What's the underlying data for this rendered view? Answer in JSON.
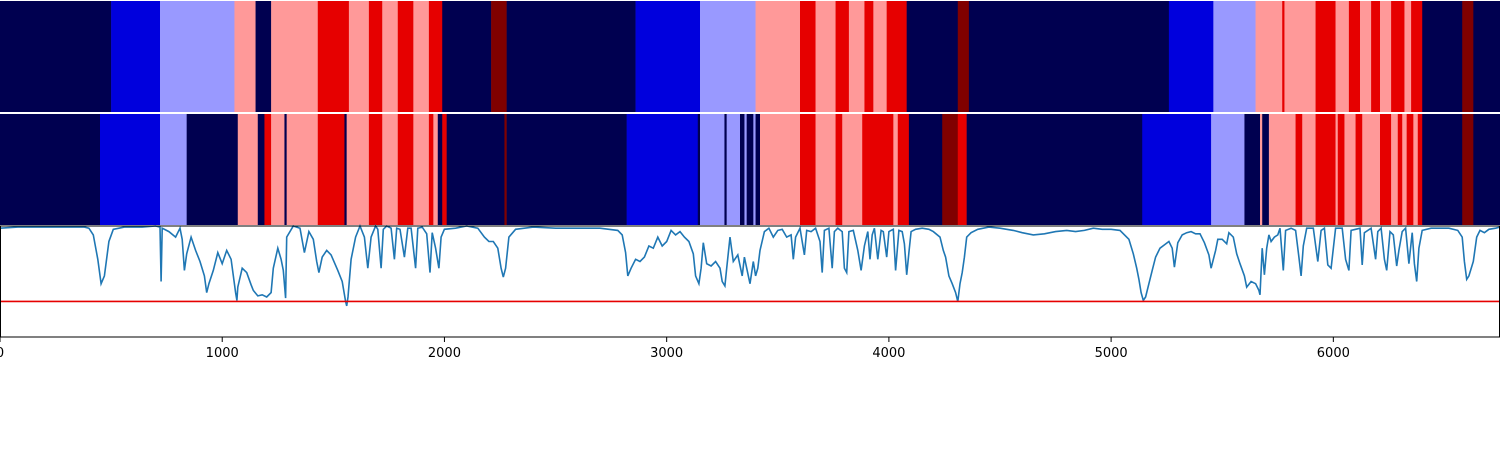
{
  "chart_data": {
    "type": "segmentation-strips-with-line",
    "xlim": [
      0,
      6750
    ],
    "x_ticks": [
      0,
      1000,
      2000,
      3000,
      4000,
      5000,
      6000
    ],
    "tick_labels": [
      "0",
      "1000",
      "2000",
      "3000",
      "4000",
      "5000",
      "6000"
    ],
    "ylim": [
      0,
      1
    ],
    "threshold": 0.32,
    "colors": {
      "0": "#000050",
      "1": "#0000dd",
      "2": "#9999ff",
      "3": "#ff9999",
      "4": "#e60000",
      "5": "#800000"
    },
    "line_color": "#1f77b4",
    "threshold_color": "#e60000",
    "strip1": [
      [
        0,
        0
      ],
      [
        500,
        1
      ],
      [
        720,
        2
      ],
      [
        1055,
        3
      ],
      [
        1150,
        0
      ],
      [
        1220,
        3
      ],
      [
        1430,
        4
      ],
      [
        1570,
        3
      ],
      [
        1660,
        4
      ],
      [
        1720,
        3
      ],
      [
        1790,
        4
      ],
      [
        1860,
        3
      ],
      [
        1930,
        4
      ],
      [
        1990,
        0
      ],
      [
        2210,
        5
      ],
      [
        2280,
        0
      ],
      [
        2860,
        1
      ],
      [
        3150,
        2
      ],
      [
        3400,
        3
      ],
      [
        3600,
        4
      ],
      [
        3670,
        3
      ],
      [
        3760,
        4
      ],
      [
        3820,
        3
      ],
      [
        3890,
        4
      ],
      [
        3930,
        3
      ],
      [
        3990,
        4
      ],
      [
        4080,
        0
      ],
      [
        4310,
        5
      ],
      [
        4360,
        0
      ],
      [
        5260,
        1
      ],
      [
        5460,
        2
      ],
      [
        5650,
        3
      ],
      [
        5770,
        4
      ],
      [
        5780,
        3
      ],
      [
        5920,
        4
      ],
      [
        6010,
        3
      ],
      [
        6070,
        4
      ],
      [
        6120,
        3
      ],
      [
        6170,
        4
      ],
      [
        6210,
        3
      ],
      [
        6260,
        4
      ],
      [
        6320,
        3
      ],
      [
        6350,
        4
      ],
      [
        6400,
        0
      ],
      [
        6580,
        5
      ],
      [
        6630,
        0
      ]
    ],
    "strip2": [
      [
        0,
        0
      ],
      [
        450,
        1
      ],
      [
        720,
        2
      ],
      [
        840,
        0
      ],
      [
        1070,
        3
      ],
      [
        1160,
        0
      ],
      [
        1190,
        4
      ],
      [
        1220,
        3
      ],
      [
        1280,
        0
      ],
      [
        1290,
        3
      ],
      [
        1430,
        4
      ],
      [
        1550,
        0
      ],
      [
        1560,
        3
      ],
      [
        1660,
        4
      ],
      [
        1720,
        3
      ],
      [
        1790,
        4
      ],
      [
        1860,
        3
      ],
      [
        1930,
        4
      ],
      [
        1950,
        3
      ],
      [
        1970,
        0
      ],
      [
        1990,
        4
      ],
      [
        2010,
        0
      ],
      [
        2270,
        5
      ],
      [
        2280,
        0
      ],
      [
        2820,
        1
      ],
      [
        3140,
        0
      ],
      [
        3150,
        2
      ],
      [
        3260,
        0
      ],
      [
        3270,
        2
      ],
      [
        3330,
        0
      ],
      [
        3350,
        2
      ],
      [
        3360,
        0
      ],
      [
        3390,
        2
      ],
      [
        3400,
        0
      ],
      [
        3420,
        3
      ],
      [
        3600,
        4
      ],
      [
        3670,
        3
      ],
      [
        3760,
        4
      ],
      [
        3790,
        3
      ],
      [
        3880,
        4
      ],
      [
        4020,
        3
      ],
      [
        4040,
        4
      ],
      [
        4090,
        0
      ],
      [
        4240,
        5
      ],
      [
        4310,
        4
      ],
      [
        4350,
        0
      ],
      [
        5140,
        1
      ],
      [
        5450,
        2
      ],
      [
        5600,
        0
      ],
      [
        5670,
        3
      ],
      [
        5680,
        0
      ],
      [
        5710,
        3
      ],
      [
        5830,
        4
      ],
      [
        5860,
        3
      ],
      [
        5920,
        4
      ],
      [
        6010,
        3
      ],
      [
        6020,
        4
      ],
      [
        6050,
        3
      ],
      [
        6100,
        4
      ],
      [
        6130,
        3
      ],
      [
        6210,
        4
      ],
      [
        6260,
        3
      ],
      [
        6290,
        4
      ],
      [
        6310,
        3
      ],
      [
        6330,
        4
      ],
      [
        6360,
        3
      ],
      [
        6380,
        4
      ],
      [
        6400,
        0
      ],
      [
        6580,
        5
      ],
      [
        6630,
        0
      ]
    ],
    "line": [
      [
        0,
        0.98
      ],
      [
        80,
        0.99
      ],
      [
        200,
        0.99
      ],
      [
        300,
        0.99
      ],
      [
        380,
        0.99
      ],
      [
        400,
        0.98
      ],
      [
        420,
        0.92
      ],
      [
        440,
        0.7
      ],
      [
        455,
        0.48
      ],
      [
        470,
        0.55
      ],
      [
        490,
        0.86
      ],
      [
        510,
        0.97
      ],
      [
        560,
        0.99
      ],
      [
        640,
        0.99
      ],
      [
        700,
        1.0
      ],
      [
        720,
        0.99
      ],
      [
        725,
        0.5
      ],
      [
        730,
        0.98
      ],
      [
        760,
        0.95
      ],
      [
        790,
        0.9
      ],
      [
        810,
        0.98
      ],
      [
        820,
        0.88
      ],
      [
        830,
        0.6
      ],
      [
        840,
        0.75
      ],
      [
        860,
        0.9
      ],
      [
        880,
        0.78
      ],
      [
        900,
        0.68
      ],
      [
        920,
        0.55
      ],
      [
        930,
        0.4
      ],
      [
        940,
        0.48
      ],
      [
        960,
        0.6
      ],
      [
        980,
        0.76
      ],
      [
        1000,
        0.66
      ],
      [
        1020,
        0.78
      ],
      [
        1040,
        0.7
      ],
      [
        1060,
        0.4
      ],
      [
        1066,
        0.33
      ],
      [
        1070,
        0.45
      ],
      [
        1090,
        0.62
      ],
      [
        1110,
        0.58
      ],
      [
        1130,
        0.47
      ],
      [
        1140,
        0.42
      ],
      [
        1160,
        0.37
      ],
      [
        1180,
        0.38
      ],
      [
        1200,
        0.36
      ],
      [
        1220,
        0.4
      ],
      [
        1230,
        0.62
      ],
      [
        1250,
        0.8
      ],
      [
        1265,
        0.7
      ],
      [
        1275,
        0.6
      ],
      [
        1285,
        0.35
      ],
      [
        1290,
        0.9
      ],
      [
        1320,
        1.0
      ],
      [
        1350,
        0.98
      ],
      [
        1370,
        0.76
      ],
      [
        1390,
        0.95
      ],
      [
        1410,
        0.88
      ],
      [
        1425,
        0.68
      ],
      [
        1435,
        0.58
      ],
      [
        1450,
        0.72
      ],
      [
        1470,
        0.78
      ],
      [
        1490,
        0.74
      ],
      [
        1520,
        0.6
      ],
      [
        1540,
        0.5
      ],
      [
        1555,
        0.32
      ],
      [
        1560,
        0.28
      ],
      [
        1566,
        0.36
      ],
      [
        1580,
        0.7
      ],
      [
        1600,
        0.9
      ],
      [
        1620,
        1.0
      ],
      [
        1640,
        0.9
      ],
      [
        1655,
        0.62
      ],
      [
        1670,
        0.9
      ],
      [
        1690,
        1.0
      ],
      [
        1700,
        0.97
      ],
      [
        1715,
        0.62
      ],
      [
        1725,
        0.97
      ],
      [
        1740,
        1.0
      ],
      [
        1760,
        0.98
      ],
      [
        1775,
        0.7
      ],
      [
        1785,
        0.98
      ],
      [
        1800,
        0.97
      ],
      [
        1820,
        0.72
      ],
      [
        1835,
        0.98
      ],
      [
        1850,
        0.98
      ],
      [
        1870,
        0.62
      ],
      [
        1880,
        0.98
      ],
      [
        1900,
        0.99
      ],
      [
        1920,
        0.93
      ],
      [
        1935,
        0.58
      ],
      [
        1945,
        0.94
      ],
      [
        1960,
        0.8
      ],
      [
        1975,
        0.62
      ],
      [
        1985,
        0.9
      ],
      [
        2000,
        0.97
      ],
      [
        2050,
        0.98
      ],
      [
        2100,
        1.0
      ],
      [
        2150,
        0.98
      ],
      [
        2180,
        0.9
      ],
      [
        2200,
        0.86
      ],
      [
        2220,
        0.86
      ],
      [
        2240,
        0.8
      ],
      [
        2255,
        0.62
      ],
      [
        2265,
        0.54
      ],
      [
        2275,
        0.62
      ],
      [
        2290,
        0.9
      ],
      [
        2320,
        0.97
      ],
      [
        2400,
        0.99
      ],
      [
        2500,
        0.98
      ],
      [
        2600,
        0.98
      ],
      [
        2700,
        0.98
      ],
      [
        2780,
        0.96
      ],
      [
        2800,
        0.92
      ],
      [
        2815,
        0.76
      ],
      [
        2825,
        0.55
      ],
      [
        2840,
        0.62
      ],
      [
        2860,
        0.7
      ],
      [
        2880,
        0.68
      ],
      [
        2900,
        0.72
      ],
      [
        2920,
        0.82
      ],
      [
        2940,
        0.8
      ],
      [
        2960,
        0.9
      ],
      [
        2980,
        0.82
      ],
      [
        3000,
        0.86
      ],
      [
        3020,
        0.96
      ],
      [
        3040,
        0.92
      ],
      [
        3060,
        0.95
      ],
      [
        3080,
        0.9
      ],
      [
        3100,
        0.86
      ],
      [
        3120,
        0.75
      ],
      [
        3130,
        0.55
      ],
      [
        3145,
        0.48
      ],
      [
        3155,
        0.62
      ],
      [
        3165,
        0.85
      ],
      [
        3180,
        0.66
      ],
      [
        3200,
        0.64
      ],
      [
        3220,
        0.68
      ],
      [
        3240,
        0.62
      ],
      [
        3250,
        0.5
      ],
      [
        3262,
        0.46
      ],
      [
        3270,
        0.62
      ],
      [
        3285,
        0.9
      ],
      [
        3300,
        0.68
      ],
      [
        3320,
        0.74
      ],
      [
        3340,
        0.55
      ],
      [
        3350,
        0.72
      ],
      [
        3360,
        0.62
      ],
      [
        3375,
        0.48
      ],
      [
        3390,
        0.68
      ],
      [
        3400,
        0.55
      ],
      [
        3410,
        0.62
      ],
      [
        3420,
        0.78
      ],
      [
        3440,
        0.95
      ],
      [
        3460,
        0.98
      ],
      [
        3480,
        0.9
      ],
      [
        3500,
        0.96
      ],
      [
        3520,
        0.97
      ],
      [
        3540,
        0.9
      ],
      [
        3560,
        0.92
      ],
      [
        3570,
        0.7
      ],
      [
        3580,
        0.9
      ],
      [
        3600,
        0.98
      ],
      [
        3620,
        0.74
      ],
      [
        3630,
        0.96
      ],
      [
        3650,
        0.95
      ],
      [
        3670,
        0.98
      ],
      [
        3690,
        0.86
      ],
      [
        3700,
        0.58
      ],
      [
        3710,
        0.96
      ],
      [
        3730,
        0.98
      ],
      [
        3745,
        0.62
      ],
      [
        3755,
        0.95
      ],
      [
        3770,
        0.98
      ],
      [
        3790,
        0.95
      ],
      [
        3800,
        0.62
      ],
      [
        3810,
        0.58
      ],
      [
        3820,
        0.95
      ],
      [
        3840,
        0.96
      ],
      [
        3860,
        0.78
      ],
      [
        3875,
        0.6
      ],
      [
        3890,
        0.82
      ],
      [
        3905,
        0.95
      ],
      [
        3915,
        0.7
      ],
      [
        3925,
        0.92
      ],
      [
        3935,
        0.98
      ],
      [
        3950,
        0.7
      ],
      [
        3965,
        0.96
      ],
      [
        3975,
        0.95
      ],
      [
        3990,
        0.72
      ],
      [
        4000,
        0.95
      ],
      [
        4020,
        0.97
      ],
      [
        4030,
        0.6
      ],
      [
        4045,
        0.96
      ],
      [
        4060,
        0.95
      ],
      [
        4070,
        0.84
      ],
      [
        4080,
        0.56
      ],
      [
        4090,
        0.76
      ],
      [
        4100,
        0.95
      ],
      [
        4120,
        0.97
      ],
      [
        4150,
        0.98
      ],
      [
        4180,
        0.97
      ],
      [
        4200,
        0.95
      ],
      [
        4230,
        0.9
      ],
      [
        4245,
        0.78
      ],
      [
        4255,
        0.72
      ],
      [
        4270,
        0.55
      ],
      [
        4285,
        0.48
      ],
      [
        4300,
        0.4
      ],
      [
        4310,
        0.32
      ],
      [
        4320,
        0.48
      ],
      [
        4330,
        0.58
      ],
      [
        4340,
        0.72
      ],
      [
        4350,
        0.9
      ],
      [
        4370,
        0.94
      ],
      [
        4400,
        0.97
      ],
      [
        4450,
        0.99
      ],
      [
        4500,
        0.98
      ],
      [
        4560,
        0.96
      ],
      [
        4600,
        0.94
      ],
      [
        4650,
        0.92
      ],
      [
        4700,
        0.93
      ],
      [
        4750,
        0.95
      ],
      [
        4800,
        0.96
      ],
      [
        4840,
        0.95
      ],
      [
        4880,
        0.96
      ],
      [
        4920,
        0.98
      ],
      [
        4960,
        0.97
      ],
      [
        5000,
        0.97
      ],
      [
        5040,
        0.96
      ],
      [
        5080,
        0.88
      ],
      [
        5100,
        0.75
      ],
      [
        5115,
        0.62
      ],
      [
        5125,
        0.52
      ],
      [
        5135,
        0.4
      ],
      [
        5145,
        0.33
      ],
      [
        5155,
        0.36
      ],
      [
        5170,
        0.48
      ],
      [
        5185,
        0.6
      ],
      [
        5200,
        0.72
      ],
      [
        5220,
        0.8
      ],
      [
        5240,
        0.83
      ],
      [
        5260,
        0.86
      ],
      [
        5275,
        0.8
      ],
      [
        5285,
        0.63
      ],
      [
        5300,
        0.85
      ],
      [
        5320,
        0.92
      ],
      [
        5340,
        0.94
      ],
      [
        5360,
        0.95
      ],
      [
        5380,
        0.93
      ],
      [
        5400,
        0.93
      ],
      [
        5420,
        0.85
      ],
      [
        5440,
        0.74
      ],
      [
        5450,
        0.62
      ],
      [
        5470,
        0.78
      ],
      [
        5480,
        0.88
      ],
      [
        5500,
        0.88
      ],
      [
        5520,
        0.84
      ],
      [
        5530,
        0.94
      ],
      [
        5550,
        0.9
      ],
      [
        5565,
        0.75
      ],
      [
        5580,
        0.66
      ],
      [
        5600,
        0.55
      ],
      [
        5610,
        0.45
      ],
      [
        5630,
        0.5
      ],
      [
        5650,
        0.48
      ],
      [
        5665,
        0.42
      ],
      [
        5670,
        0.38
      ],
      [
        5680,
        0.8
      ],
      [
        5690,
        0.56
      ],
      [
        5700,
        0.8
      ],
      [
        5710,
        0.92
      ],
      [
        5720,
        0.86
      ],
      [
        5735,
        0.9
      ],
      [
        5750,
        0.92
      ],
      [
        5760,
        0.98
      ],
      [
        5775,
        0.6
      ],
      [
        5785,
        0.96
      ],
      [
        5810,
        0.98
      ],
      [
        5830,
        0.96
      ],
      [
        5845,
        0.72
      ],
      [
        5855,
        0.55
      ],
      [
        5865,
        0.82
      ],
      [
        5880,
        0.98
      ],
      [
        5910,
        0.98
      ],
      [
        5930,
        0.68
      ],
      [
        5945,
        0.96
      ],
      [
        5960,
        0.98
      ],
      [
        5975,
        0.65
      ],
      [
        5990,
        0.62
      ],
      [
        6010,
        0.98
      ],
      [
        6040,
        0.98
      ],
      [
        6055,
        0.7
      ],
      [
        6070,
        0.6
      ],
      [
        6080,
        0.96
      ],
      [
        6100,
        0.97
      ],
      [
        6120,
        0.98
      ],
      [
        6130,
        0.65
      ],
      [
        6140,
        0.94
      ],
      [
        6170,
        0.98
      ],
      [
        6190,
        0.7
      ],
      [
        6200,
        0.95
      ],
      [
        6215,
        0.98
      ],
      [
        6230,
        0.7
      ],
      [
        6240,
        0.6
      ],
      [
        6255,
        0.95
      ],
      [
        6270,
        0.92
      ],
      [
        6285,
        0.64
      ],
      [
        6295,
        0.78
      ],
      [
        6310,
        0.95
      ],
      [
        6325,
        0.98
      ],
      [
        6340,
        0.66
      ],
      [
        6355,
        0.94
      ],
      [
        6365,
        0.66
      ],
      [
        6375,
        0.5
      ],
      [
        6385,
        0.8
      ],
      [
        6400,
        0.96
      ],
      [
        6440,
        0.98
      ],
      [
        6480,
        0.98
      ],
      [
        6520,
        0.98
      ],
      [
        6560,
        0.96
      ],
      [
        6580,
        0.9
      ],
      [
        6590,
        0.68
      ],
      [
        6600,
        0.52
      ],
      [
        6610,
        0.55
      ],
      [
        6630,
        0.68
      ],
      [
        6645,
        0.9
      ],
      [
        6660,
        0.96
      ],
      [
        6680,
        0.94
      ],
      [
        6700,
        0.97
      ],
      [
        6730,
        0.98
      ],
      [
        6750,
        0.99
      ]
    ]
  }
}
